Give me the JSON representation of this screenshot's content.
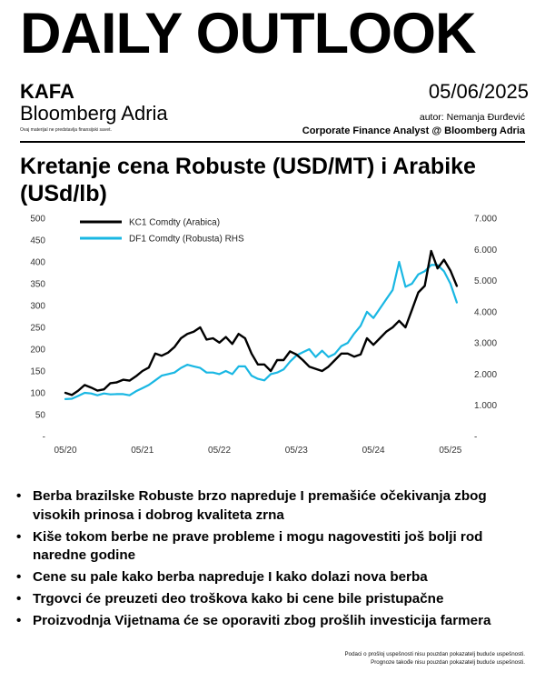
{
  "header": {
    "title": "DAILY OUTLOOK",
    "topic": "KAFA",
    "org": "Bloomberg Adria",
    "disclaimer": "Ovaj materijal ne predstavlja finansijski savet.",
    "date": "05/06/2025",
    "author": "autor: Nemanja Đurđević",
    "role": "Corporate Finance Analyst @ Bloomberg Adria"
  },
  "chart_title": "Kretanje cena Robuste (USD/MT) i Arabike (USd/lb)",
  "chart_data": {
    "type": "line",
    "title": "Kretanje cena Robuste (USD/MT) i Arabike (USd/lb)",
    "x_ticks": [
      "05/20",
      "05/21",
      "05/22",
      "05/23",
      "05/24",
      "05/25"
    ],
    "y_left_ticks": [
      "-",
      "50",
      "100",
      "150",
      "200",
      "250",
      "300",
      "350",
      "400",
      "450",
      "500"
    ],
    "y_right_ticks": [
      "-",
      "1.000",
      "2.000",
      "3.000",
      "4.000",
      "5.000",
      "6.000",
      "7.000"
    ],
    "ylim_left": [
      0,
      500
    ],
    "ylim_right": [
      0,
      7000
    ],
    "grid": false,
    "legend_position": "top-left",
    "series": [
      {
        "name": "KC1 Comdty (Arabica)",
        "axis": "left",
        "color": "#000000",
        "points": [
          [
            "2020-05",
            100
          ],
          [
            "2020-06",
            95
          ],
          [
            "2020-07",
            105
          ],
          [
            "2020-08",
            118
          ],
          [
            "2020-09",
            112
          ],
          [
            "2020-10",
            105
          ],
          [
            "2020-11",
            108
          ],
          [
            "2020-12",
            122
          ],
          [
            "2021-01",
            124
          ],
          [
            "2021-02",
            130
          ],
          [
            "2021-03",
            128
          ],
          [
            "2021-04",
            138
          ],
          [
            "2021-05",
            150
          ],
          [
            "2021-06",
            158
          ],
          [
            "2021-07",
            190
          ],
          [
            "2021-08",
            185
          ],
          [
            "2021-09",
            192
          ],
          [
            "2021-10",
            205
          ],
          [
            "2021-11",
            225
          ],
          [
            "2021-12",
            235
          ],
          [
            "2022-01",
            240
          ],
          [
            "2022-02",
            250
          ],
          [
            "2022-03",
            222
          ],
          [
            "2022-04",
            225
          ],
          [
            "2022-05",
            215
          ],
          [
            "2022-06",
            228
          ],
          [
            "2022-07",
            212
          ],
          [
            "2022-08",
            235
          ],
          [
            "2022-09",
            225
          ],
          [
            "2022-10",
            190
          ],
          [
            "2022-11",
            165
          ],
          [
            "2022-12",
            165
          ],
          [
            "2023-01",
            150
          ],
          [
            "2023-02",
            175
          ],
          [
            "2023-03",
            175
          ],
          [
            "2023-04",
            195
          ],
          [
            "2023-05",
            188
          ],
          [
            "2023-06",
            175
          ],
          [
            "2023-07",
            160
          ],
          [
            "2023-08",
            155
          ],
          [
            "2023-09",
            150
          ],
          [
            "2023-10",
            160
          ],
          [
            "2023-11",
            175
          ],
          [
            "2023-12",
            190
          ],
          [
            "2024-01",
            190
          ],
          [
            "2024-02",
            183
          ],
          [
            "2024-03",
            188
          ],
          [
            "2024-04",
            225
          ],
          [
            "2024-05",
            210
          ],
          [
            "2024-06",
            225
          ],
          [
            "2024-07",
            240
          ],
          [
            "2024-08",
            250
          ],
          [
            "2024-09",
            265
          ],
          [
            "2024-10",
            250
          ],
          [
            "2024-11",
            290
          ],
          [
            "2024-12",
            330
          ],
          [
            "2025-01",
            345
          ],
          [
            "2025-02",
            425
          ],
          [
            "2025-03",
            385
          ],
          [
            "2025-04",
            405
          ],
          [
            "2025-05",
            380
          ],
          [
            "2025-06",
            345
          ]
        ]
      },
      {
        "name": "DF1 Comdty (Robusta) RHS",
        "axis": "right",
        "color": "#19b7e3",
        "points": [
          [
            "2020-05",
            1200
          ],
          [
            "2020-06",
            1210
          ],
          [
            "2020-07",
            1300
          ],
          [
            "2020-08",
            1400
          ],
          [
            "2020-09",
            1380
          ],
          [
            "2020-10",
            1320
          ],
          [
            "2020-11",
            1380
          ],
          [
            "2020-12",
            1350
          ],
          [
            "2021-01",
            1360
          ],
          [
            "2021-02",
            1360
          ],
          [
            "2021-03",
            1320
          ],
          [
            "2021-04",
            1450
          ],
          [
            "2021-05",
            1550
          ],
          [
            "2021-06",
            1650
          ],
          [
            "2021-07",
            1800
          ],
          [
            "2021-08",
            1950
          ],
          [
            "2021-09",
            2000
          ],
          [
            "2021-10",
            2050
          ],
          [
            "2021-11",
            2200
          ],
          [
            "2021-12",
            2300
          ],
          [
            "2022-01",
            2250
          ],
          [
            "2022-02",
            2200
          ],
          [
            "2022-03",
            2050
          ],
          [
            "2022-04",
            2050
          ],
          [
            "2022-05",
            2000
          ],
          [
            "2022-06",
            2100
          ],
          [
            "2022-07",
            2000
          ],
          [
            "2022-08",
            2250
          ],
          [
            "2022-09",
            2250
          ],
          [
            "2022-10",
            1950
          ],
          [
            "2022-11",
            1850
          ],
          [
            "2022-12",
            1800
          ],
          [
            "2023-01",
            2000
          ],
          [
            "2023-02",
            2050
          ],
          [
            "2023-03",
            2150
          ],
          [
            "2023-04",
            2400
          ],
          [
            "2023-05",
            2600
          ],
          [
            "2023-06",
            2700
          ],
          [
            "2023-07",
            2800
          ],
          [
            "2023-08",
            2550
          ],
          [
            "2023-09",
            2750
          ],
          [
            "2023-10",
            2550
          ],
          [
            "2023-11",
            2650
          ],
          [
            "2023-12",
            2900
          ],
          [
            "2024-01",
            3000
          ],
          [
            "2024-02",
            3300
          ],
          [
            "2024-03",
            3550
          ],
          [
            "2024-04",
            4000
          ],
          [
            "2024-05",
            3800
          ],
          [
            "2024-06",
            4100
          ],
          [
            "2024-07",
            4400
          ],
          [
            "2024-08",
            4700
          ],
          [
            "2024-09",
            5600
          ],
          [
            "2024-10",
            4800
          ],
          [
            "2024-11",
            4900
          ],
          [
            "2024-12",
            5200
          ],
          [
            "2025-01",
            5300
          ],
          [
            "2025-02",
            5500
          ],
          [
            "2025-03",
            5500
          ],
          [
            "2025-04",
            5300
          ],
          [
            "2025-05",
            4900
          ],
          [
            "2025-06",
            4300
          ]
        ]
      }
    ]
  },
  "bullets": [
    "Berba brazilske Robuste brzo napreduje I premašiće očekivanja zbog visokih prinosa i dobrog kvaliteta zrna",
    "Kiše tokom berbe ne prave probleme i mogu nagovestiti još bolji rod naredne godine",
    "Cene su pale kako berba napreduje I kako dolazi nova berba",
    "Trgovci će preuzeti deo troškova kako bi cene bile pristupačne",
    "Proizvodnja Vijetnama će se oporaviti zbog prošlih investicija farmera"
  ],
  "bullet_glyph": "•",
  "footer": {
    "line1": "Podaci o prošloj uspešnosti nisu pouzdan pokazatelj buduće uspešnosti.",
    "line2": "Prognoze takođe nisu pouzdan pokazatelj buduće uspešnosti."
  }
}
